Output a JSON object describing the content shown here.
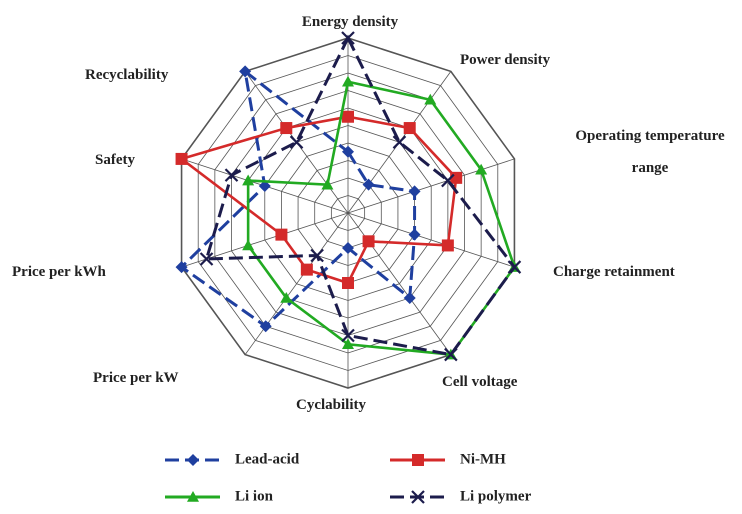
{
  "chart_data": {
    "type": "radar",
    "categories": [
      "Energy density",
      "Power density",
      "Operating temperature range",
      "Charge retainment",
      "Cell voltage",
      "Cyclability",
      "Price per kW",
      "Price per kWh",
      "Safety",
      "Recyclability"
    ],
    "ylim": [
      0,
      10
    ],
    "yticks": [
      1,
      2,
      3,
      4,
      5,
      6,
      7,
      8,
      9,
      10
    ],
    "grid": true,
    "series": [
      {
        "name": "Lead-acid",
        "color": "#1f3f9f",
        "marker": "diamond",
        "linestyle": "dashed",
        "values": [
          3.5,
          2,
          4,
          4,
          6,
          2,
          8,
          10,
          5,
          10
        ]
      },
      {
        "name": "Ni-MH",
        "color": "#d42a2a",
        "marker": "square",
        "linestyle": "solid",
        "values": [
          5.5,
          6,
          6.5,
          6,
          2,
          4,
          4,
          4,
          10,
          6
        ]
      },
      {
        "name": "Li ion",
        "color": "#22aa22",
        "marker": "triangle",
        "linestyle": "solid",
        "values": [
          7.5,
          8,
          8,
          10,
          10,
          7.5,
          6,
          6,
          6,
          2
        ]
      },
      {
        "name": "Li polymer",
        "color": "#1c1c4c",
        "marker": "x",
        "linestyle": "dashed",
        "values": [
          10,
          5,
          6,
          10,
          10,
          7,
          3,
          8.5,
          7,
          5
        ]
      }
    ]
  }
}
